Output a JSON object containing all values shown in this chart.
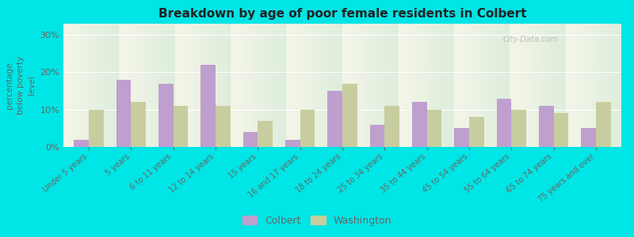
{
  "title": "Breakdown by age of poor female residents in Colbert",
  "ylabel": "percentage\nbelow poverty\nlevel",
  "categories": [
    "Under 5 years",
    "5 years",
    "6 to 11 years",
    "12 to 14 years",
    "15 years",
    "16 and 17 years",
    "18 to 24 years",
    "25 to 34 years",
    "35 to 44 years",
    "45 to 54 years",
    "55 to 64 years",
    "65 to 74 years",
    "75 years and over"
  ],
  "colbert_values": [
    2,
    18,
    17,
    22,
    4,
    2,
    15,
    6,
    12,
    5,
    13,
    11,
    5
  ],
  "washington_values": [
    10,
    12,
    11,
    11,
    7,
    10,
    17,
    11,
    10,
    8,
    10,
    9,
    12
  ],
  "colbert_color": "#bf9fcd",
  "washington_color": "#c8cd9f",
  "title_color": "#222222",
  "axis_color": "#666666",
  "tick_color": "#666666",
  "legend_colbert": "Colbert",
  "legend_washington": "Washington",
  "yticks": [
    0,
    10,
    20,
    30
  ],
  "ytick_labels": [
    "0%",
    "10%",
    "20%",
    "30%"
  ],
  "ylim": [
    0,
    33
  ],
  "bar_width": 0.35,
  "bg_color": "#00e5e5",
  "plot_bg_top": "#f5f5e8",
  "plot_bg_bottom": "#ddeedd"
}
